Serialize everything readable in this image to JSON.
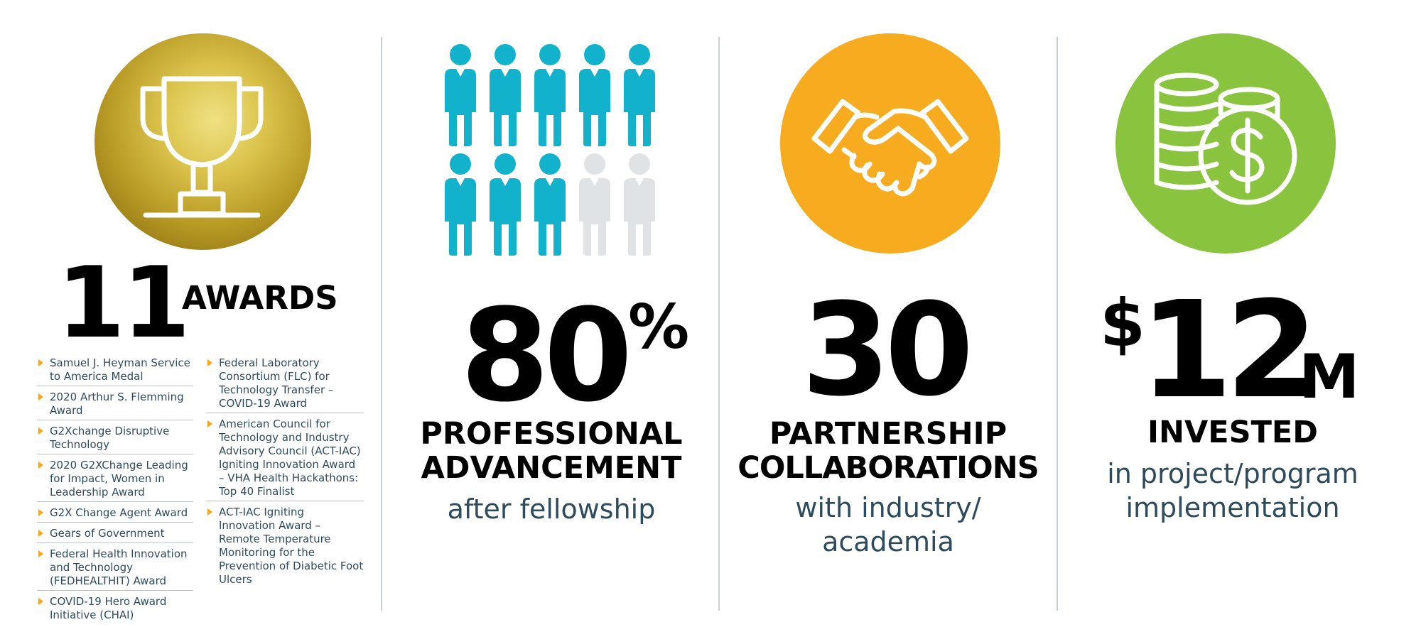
{
  "colors": {
    "gold": "#d4bc42",
    "teal": "#13b2cc",
    "gray_person": "#dfe3e6",
    "orange": "#f7ac1f",
    "green": "#8ac43f",
    "text_dark": "#2e4b5d",
    "bullet": "#f5a623",
    "divider": "#c9cfd5"
  },
  "awards": {
    "icon": "trophy-icon",
    "number": "11",
    "label": "AWARDS",
    "column1": [
      "Samuel J. Heyman Service to America Medal",
      "2020 Arthur S. Flemming Award",
      "G2Xchange Disruptive Technology",
      "2020 G2XChange Leading for Impact, Women in Leadership Award",
      "G2X Change Agent Award",
      "Gears of Government",
      "Federal Health Innovation and Technology (FEDHEALTHIT) Award",
      "COVID-19 Hero Award Initiative (CHAI)"
    ],
    "column2": [
      "Federal Laboratory Consortium (FLC) for Technology Transfer – COVID-19 Award",
      "American Council for Technology and Industry Advisory Council (ACT-IAC) Igniting Innovation Award – VHA Health Hackathons: Top 40 Finalist",
      "ACT-IAC Igniting Innovation Award – Remote Temperature Monitoring for the Prevention of Diabetic Foot Ulcers"
    ]
  },
  "advancement": {
    "icon": "people-icon",
    "filled_people": 8,
    "total_people": 10,
    "number": "80",
    "unit": "%",
    "caption_line1": "PROFESSIONAL",
    "caption_line2": "ADVANCEMENT",
    "sub": "after fellowship"
  },
  "partnerships": {
    "icon": "handshake-icon",
    "number": "30",
    "caption_line1": "PARTNERSHIP",
    "caption_line2": "COLLABORATIONS",
    "sub_line1": "with industry/",
    "sub_line2": "academia"
  },
  "investment": {
    "icon": "coins-dollar-icon",
    "currency": "$",
    "number": "12",
    "unit": "M",
    "caption": "INVESTED",
    "sub_line1": "in project/program",
    "sub_line2": "implementation"
  }
}
